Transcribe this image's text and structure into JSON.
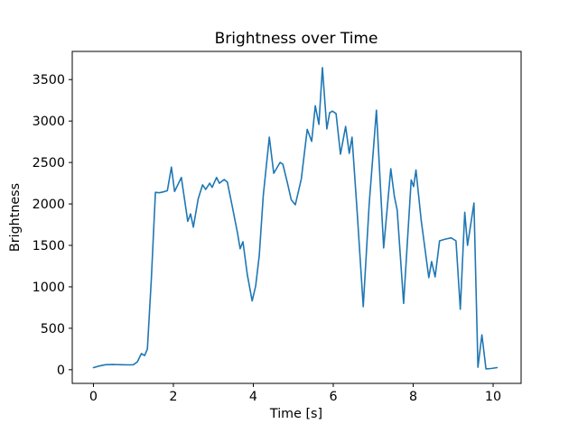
{
  "figure": {
    "background": "#ffffff",
    "frame_color": "#000000"
  },
  "chart_data": {
    "type": "line",
    "title": "Brightness over Time",
    "xlabel": "Time [s]",
    "ylabel": "Brightness",
    "line_color": "#1f77b4",
    "line_width": 1.6,
    "grid": false,
    "legend_position": "none",
    "x_ticks": [
      0,
      2,
      4,
      6,
      8,
      10
    ],
    "y_ticks": [
      0,
      500,
      1000,
      1500,
      2000,
      2500,
      3000,
      3500
    ],
    "xlim": [
      -0.53,
      10.7
    ],
    "ylim": [
      -165,
      3840
    ],
    "x": [
      0,
      0.15,
      0.3,
      0.5,
      0.7,
      0.9,
      1.0,
      1.1,
      1.2,
      1.28,
      1.35,
      1.45,
      1.55,
      1.65,
      1.75,
      1.85,
      1.95,
      2.03,
      2.2,
      2.36,
      2.43,
      2.5,
      2.62,
      2.73,
      2.81,
      2.91,
      2.97,
      3.08,
      3.15,
      3.27,
      3.35,
      3.47,
      3.6,
      3.67,
      3.74,
      3.85,
      3.97,
      4.06,
      4.15,
      4.25,
      4.4,
      4.51,
      4.67,
      4.74,
      4.85,
      4.95,
      5.05,
      5.2,
      5.35,
      5.46,
      5.55,
      5.64,
      5.73,
      5.84,
      5.91,
      5.98,
      6.07,
      6.18,
      6.31,
      6.4,
      6.47,
      6.6,
      6.75,
      6.9,
      7.08,
      7.26,
      7.44,
      7.53,
      7.6,
      7.76,
      7.95,
      8.01,
      8.07,
      8.2,
      8.39,
      8.46,
      8.55,
      8.66,
      8.8,
      8.95,
      9.07,
      9.18,
      9.29,
      9.36,
      9.52,
      9.62,
      9.72,
      9.82,
      9.95,
      10.1
    ],
    "y": [
      25,
      45,
      60,
      62,
      60,
      58,
      60,
      95,
      195,
      170,
      250,
      1100,
      2140,
      2135,
      2145,
      2160,
      2445,
      2150,
      2320,
      1790,
      1880,
      1720,
      2060,
      2230,
      2175,
      2250,
      2200,
      2320,
      2250,
      2295,
      2265,
      1980,
      1660,
      1460,
      1545,
      1150,
      830,
      1010,
      1380,
      2100,
      2805,
      2370,
      2500,
      2480,
      2260,
      2050,
      1990,
      2300,
      2900,
      2755,
      3185,
      2960,
      3645,
      2905,
      3100,
      3120,
      3090,
      2600,
      2935,
      2610,
      2805,
      1900,
      760,
      2000,
      3130,
      1470,
      2425,
      2090,
      1925,
      800,
      2290,
      2210,
      2410,
      1800,
      1110,
      1305,
      1120,
      1555,
      1575,
      1590,
      1555,
      730,
      1900,
      1500,
      2010,
      30,
      420,
      10,
      15,
      25
    ]
  }
}
